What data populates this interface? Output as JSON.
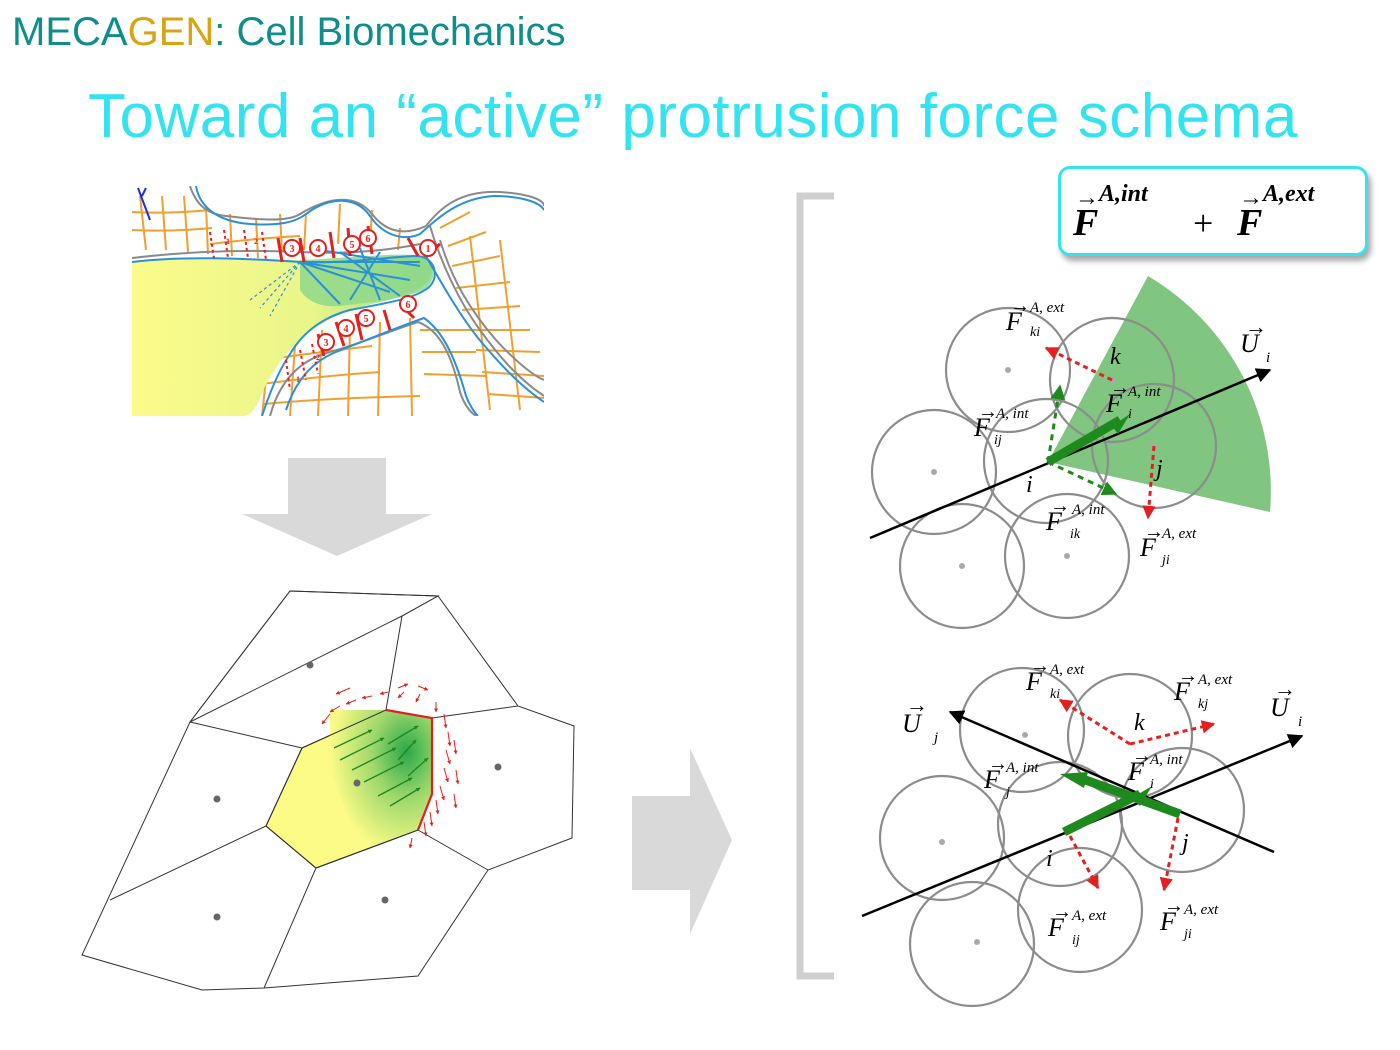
{
  "header": {
    "brand_part1": "MECA",
    "brand_part2": "GEN",
    "brand_rest": ": Cell Biomechanics"
  },
  "title": "Toward an “active” protrusion force schema",
  "formula": {
    "symbol": "F",
    "sup_int": "A,int",
    "plus": "+",
    "sup_ext": "A,ext"
  },
  "colors": {
    "header_teal": "#0f8d8a",
    "header_gold": "#d8a416",
    "title_cyan": "#33e4f0",
    "force_green": "#1e8a1e",
    "force_red": "#e32020",
    "membrane_blue": "#2a90d8",
    "tether_orange": "#f0a030",
    "arrow_gray": "#d9d9d9"
  },
  "microscopy_markers": {
    "top": [
      "1",
      "2",
      "3",
      "4",
      "5",
      "6",
      "1"
    ],
    "bottom": [
      "1",
      "2",
      "3",
      "4",
      "5",
      "6"
    ]
  },
  "diagram_top": {
    "vector_U": "U",
    "vector_U_sub": "i",
    "labels": {
      "k": "k",
      "i": "i",
      "j": "j"
    },
    "forces": {
      "F_ki": {
        "sub": "ki",
        "sup": "A, ext"
      },
      "F_i_int": {
        "sub": "i",
        "sup": "A, int"
      },
      "F_ij_int": {
        "sub": "ij",
        "sup": "A, int"
      },
      "F_ik_int": {
        "sub": "ik",
        "sup": "A, int"
      },
      "F_ji_ext": {
        "sub": "ji",
        "sup": "A, ext"
      }
    }
  },
  "diagram_bottom": {
    "vector_Uj": "U",
    "vector_Uj_sub": "j",
    "vector_Ui": "U",
    "vector_Ui_sub": "i",
    "labels": {
      "k": "k",
      "i": "i",
      "j": "j"
    },
    "forces": {
      "F_ki_ext": {
        "sub": "ki",
        "sup": "A, ext"
      },
      "F_kj_ext": {
        "sub": "kj",
        "sup": "A, ext"
      },
      "F_j_int": {
        "sub": "j",
        "sup": "A, int"
      },
      "F_i_int": {
        "sub": "i",
        "sup": "A, int"
      },
      "F_ij_ext": {
        "sub": "ij",
        "sup": "A, ext"
      },
      "F_ji_ext": {
        "sub": "ji",
        "sup": "A, ext"
      }
    }
  }
}
